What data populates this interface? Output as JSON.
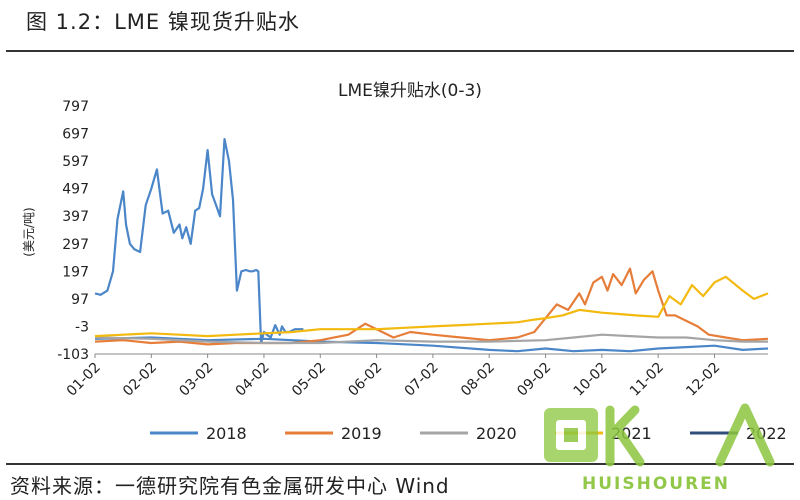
{
  "figure": {
    "title": "图 1.2：LME 镍现货升贴水",
    "source": "资料来源：一德研究院有色金属研发中心  Wind"
  },
  "chart_data": {
    "type": "line",
    "title": "LME镍升贴水(0-3)",
    "xlabel": "",
    "ylabel": "(美元/吨)",
    "ylim": [
      -103,
      797
    ],
    "yticks": [
      -103,
      -3,
      97,
      197,
      297,
      397,
      497,
      597,
      697,
      797
    ],
    "xticks": [
      "01-02",
      "02-02",
      "03-02",
      "04-02",
      "05-02",
      "06-02",
      "07-02",
      "08-02",
      "09-02",
      "10-02",
      "11-02",
      "12-02"
    ],
    "xlim": [
      0,
      11.95
    ],
    "grid": false,
    "legend": "bottom",
    "series": [
      {
        "name": "2018",
        "color": "#4a86c8",
        "x": [
          0,
          0.1,
          0.22,
          0.32,
          0.4,
          0.5,
          0.55,
          0.62,
          0.7,
          0.8,
          0.9,
          1.0,
          1.1,
          1.2,
          1.3,
          1.4,
          1.5,
          1.55,
          1.62,
          1.7,
          1.78,
          1.85,
          1.92,
          2.0,
          2.08,
          2.15,
          2.22,
          2.3,
          2.38,
          2.45,
          2.52,
          2.6,
          2.68,
          2.75,
          2.8,
          2.86,
          2.9,
          2.95,
          3.0,
          3.05,
          3.12,
          3.2,
          3.28,
          3.32,
          3.38,
          3.45,
          3.55,
          3.62,
          3.7
        ],
        "y": [
          117,
          112,
          127,
          197,
          387,
          487,
          367,
          297,
          277,
          267,
          437,
          497,
          567,
          407,
          417,
          337,
          367,
          317,
          357,
          297,
          417,
          427,
          497,
          637,
          477,
          437,
          397,
          677,
          597,
          457,
          127,
          197,
          202,
          197,
          197,
          202,
          197,
          -63,
          -23,
          -33,
          -43,
          2,
          -33,
          -3,
          -23,
          -23,
          -13,
          -13,
          -13
        ]
      },
      {
        "name": "2018",
        "color": "#4a86c8",
        "x": [
          0,
          1,
          2,
          3,
          4,
          5,
          6,
          7,
          7.5,
          8,
          8.5,
          9,
          9.5,
          10,
          10.5,
          11,
          11.5,
          11.95
        ],
        "y": [
          -48,
          -43,
          -53,
          -48,
          -58,
          -63,
          -73,
          -88,
          -93,
          -83,
          -93,
          -88,
          -93,
          -83,
          -78,
          -73,
          -88,
          -83
        ]
      },
      {
        "name": "2019",
        "color": "#e67e3a",
        "x": [
          0,
          0.5,
          1,
          1.5,
          2,
          2.5,
          3,
          3.5,
          4,
          4.5,
          4.8,
          5,
          5.3,
          5.6,
          6,
          6.5,
          7,
          7.5,
          7.8,
          8,
          8.2,
          8.4,
          8.6,
          8.7,
          8.85,
          9,
          9.1,
          9.2,
          9.35,
          9.5,
          9.6,
          9.75,
          9.9,
          10,
          10.15,
          10.3,
          10.5,
          10.7,
          10.9,
          11.2,
          11.5,
          11.95
        ],
        "y": [
          -58,
          -53,
          -63,
          -58,
          -68,
          -63,
          -63,
          -63,
          -53,
          -33,
          7,
          -13,
          -43,
          -23,
          -33,
          -43,
          -53,
          -43,
          -23,
          27,
          77,
          57,
          117,
          77,
          157,
          177,
          127,
          187,
          147,
          207,
          117,
          167,
          197,
          127,
          37,
          37,
          17,
          -3,
          -33,
          -43,
          -53,
          -48
        ]
      },
      {
        "name": "2020",
        "color": "#a5a5a5",
        "x": [
          0,
          1,
          2,
          3,
          4,
          5,
          6,
          7,
          8,
          8.5,
          9,
          9.5,
          10,
          10.5,
          11,
          11.5,
          11.95
        ],
        "y": [
          -43,
          -48,
          -58,
          -63,
          -63,
          -53,
          -58,
          -58,
          -53,
          -43,
          -33,
          -38,
          -43,
          -43,
          -53,
          -58,
          -58
        ]
      },
      {
        "name": "2021",
        "color": "#f2b90f",
        "x": [
          0,
          0.5,
          1,
          1.5,
          2,
          2.5,
          3,
          3.5,
          4,
          4.5,
          5,
          5.5,
          6,
          6.5,
          7,
          7.5,
          7.8,
          8,
          8.3,
          8.6,
          9,
          9.3,
          9.6,
          10,
          10.2,
          10.4,
          10.6,
          10.8,
          11,
          11.2,
          11.5,
          11.7,
          11.95
        ],
        "y": [
          -38,
          -33,
          -28,
          -33,
          -38,
          -33,
          -28,
          -23,
          -13,
          -13,
          -13,
          -8,
          -3,
          2,
          7,
          12,
          22,
          27,
          37,
          57,
          47,
          42,
          37,
          32,
          107,
          77,
          147,
          107,
          157,
          177,
          127,
          97,
          117
        ]
      }
    ]
  },
  "legend_entries": [
    "2018",
    "2019",
    "2020",
    "2021",
    "2022"
  ],
  "watermark": {
    "text": "HUISHOUREN"
  }
}
